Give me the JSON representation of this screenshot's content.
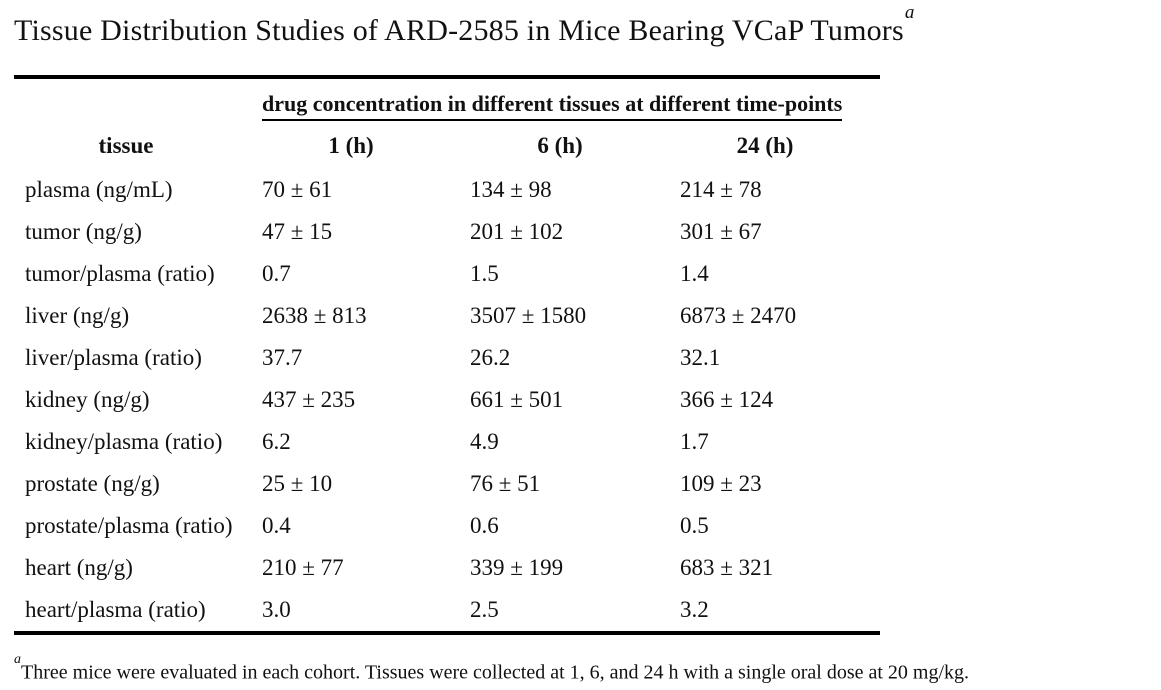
{
  "title": {
    "text": "Tissue Distribution Studies of ARD-2585 in Mice Bearing VCaP Tumors",
    "footnote_marker": "a"
  },
  "table": {
    "span_header": "drug concentration in different tissues at different time-points",
    "columns": [
      "tissue",
      "1 (h)",
      "6 (h)",
      "24 (h)"
    ],
    "rows": [
      {
        "tissue": "plasma (ng/mL)",
        "values": [
          "70 ± 61",
          "134 ± 98",
          "214 ± 78"
        ]
      },
      {
        "tissue": "tumor (ng/g)",
        "values": [
          "47 ± 15",
          "201 ± 102",
          "301 ± 67"
        ]
      },
      {
        "tissue": "tumor/plasma (ratio)",
        "values": [
          "0.7",
          "1.5",
          "1.4"
        ]
      },
      {
        "tissue": "liver (ng/g)",
        "values": [
          "2638 ± 813",
          "3507 ± 1580",
          "6873 ± 2470"
        ]
      },
      {
        "tissue": "liver/plasma (ratio)",
        "values": [
          "37.7",
          "26.2",
          "32.1"
        ]
      },
      {
        "tissue": "kidney (ng/g)",
        "values": [
          "437 ± 235",
          "661 ± 501",
          "366 ± 124"
        ]
      },
      {
        "tissue": "kidney/plasma (ratio)",
        "values": [
          "6.2",
          "4.9",
          "1.7"
        ]
      },
      {
        "tissue": "prostate (ng/g)",
        "values": [
          "25 ± 10",
          "76 ± 51",
          "109 ± 23"
        ]
      },
      {
        "tissue": "prostate/plasma (ratio)",
        "values": [
          "0.4",
          "0.6",
          "0.5"
        ]
      },
      {
        "tissue": "heart (ng/g)",
        "values": [
          "210 ± 77",
          "339 ± 199",
          "683 ± 321"
        ]
      },
      {
        "tissue": "heart/plasma (ratio)",
        "values": [
          "3.0",
          "2.5",
          "3.2"
        ]
      }
    ]
  },
  "footnote": {
    "marker": "a",
    "text": "Three mice were evaluated in each cohort. Tissues were collected at 1, 6, and 24 h with a single oral dose at 20 mg/kg."
  },
  "colors": {
    "background": "#ffffff",
    "text": "#111111",
    "rule": "#000000"
  }
}
